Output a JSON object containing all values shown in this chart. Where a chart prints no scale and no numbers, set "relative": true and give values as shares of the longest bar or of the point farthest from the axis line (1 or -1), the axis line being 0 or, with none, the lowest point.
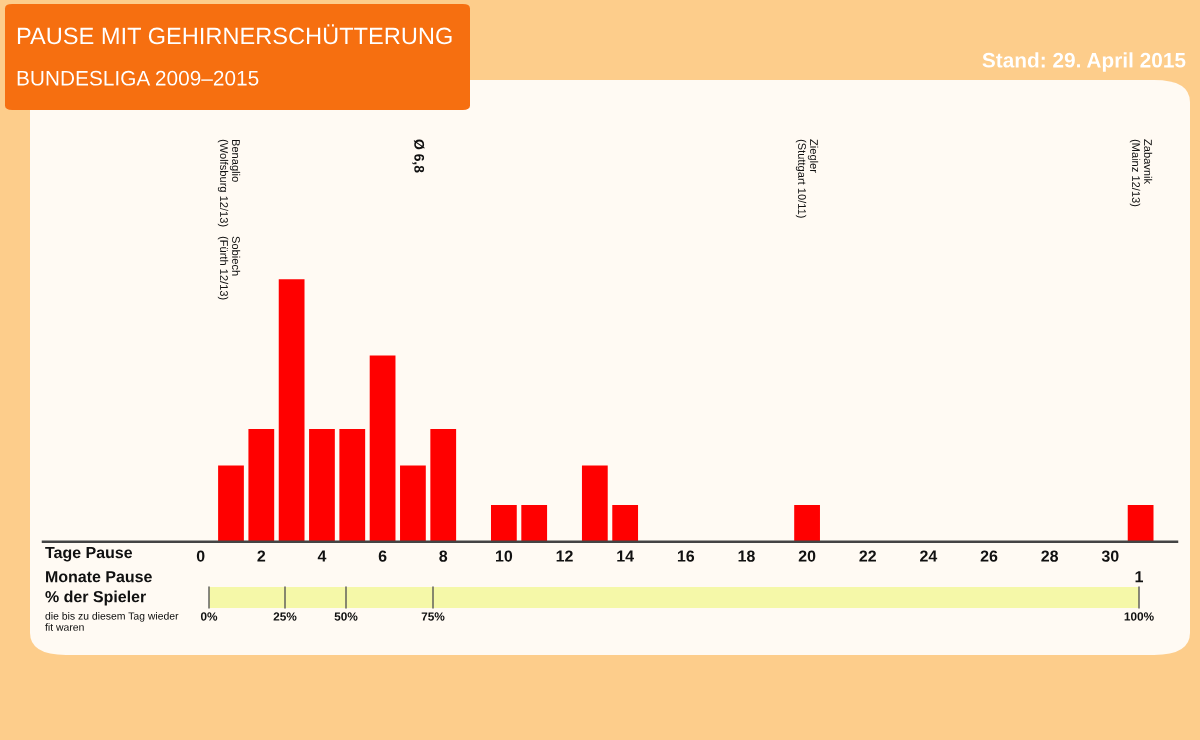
{
  "chart_data": {
    "type": "bar",
    "title": "PAUSE MIT GEHIRNERSCHÜTTERUNG",
    "subtitle": "BUNDESLIGA 2009–2015",
    "xlabel": "Tage Pause",
    "x": [
      1,
      2,
      3,
      4,
      5,
      6,
      7,
      8,
      10,
      11,
      13,
      14,
      20,
      31
    ],
    "values": [
      0.29,
      0.43,
      1,
      0.43,
      0.43,
      0.71,
      0.29,
      0.43,
      0.14,
      0.14,
      0.29,
      0.14,
      0.14,
      0.14
    ],
    "color": "#ff0000",
    "relative": true,
    "xlim": [
      -5.2,
      32.2
    ],
    "xticks": [
      0,
      2,
      4,
      6,
      8,
      10,
      12,
      14,
      16,
      18,
      20,
      22,
      24,
      26,
      28,
      30
    ],
    "annotations": [
      "Benaglio\n(Wolfsburg 12/13)",
      "Sobiech\n(Fürth 12/13)",
      "Ø 6,8",
      "Ziegler\n(Stuttgart 10/11)",
      "Zabavnik\n(Mainz 12/13)",
      "Stand: 29. April 2015",
      "Monate Pause",
      "1",
      "% der Spieler",
      "die bis zu diesem Tag wieder\nfit waren",
      "0%",
      "25%",
      "50%",
      "75%",
      "100%"
    ]
  }
}
